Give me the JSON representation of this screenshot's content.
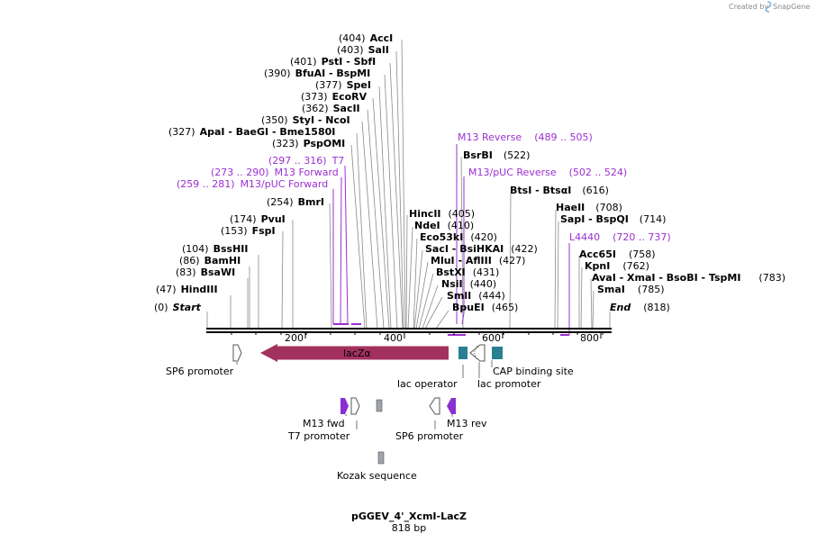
{
  "credit": "Created by",
  "brand": "SnapGene",
  "sites": [
    {
      "pos": "(404)",
      "name": "AccI",
      "extra": ""
    },
    {
      "pos": "(403)",
      "name": "SalI",
      "extra": ""
    },
    {
      "pos": "(401)",
      "name": "PstI",
      "extra": "  -  SbfI"
    },
    {
      "pos": "(390)",
      "name": "BfuAI",
      "extra": "  -  BspMI"
    },
    {
      "pos": "(377)",
      "name": "SpeI",
      "extra": ""
    },
    {
      "pos": "(373)",
      "name": "EcoRV",
      "extra": ""
    },
    {
      "pos": "(362)",
      "name": "SacII",
      "extra": ""
    },
    {
      "pos": "(350)",
      "name": "StyI",
      "extra": "  -  NcoI"
    },
    {
      "pos": "(327)",
      "name": "ApaI",
      "extra": "   -  BaeGI  -  Bme1580I"
    },
    {
      "pos": "(323)",
      "name": "PspOMI",
      "extra": ""
    },
    {
      "pos": "(254)",
      "name": "BmrI",
      "extra": ""
    },
    {
      "pos": "(174)",
      "name": "PvuI",
      "extra": ""
    },
    {
      "pos": "(153)",
      "name": "FspI",
      "extra": ""
    },
    {
      "pos": "(104)",
      "name": "BssHII",
      "extra": ""
    },
    {
      "pos": "(86)",
      "name": "BamHI",
      "extra": ""
    },
    {
      "pos": "(83)",
      "name": "BsaWI",
      "extra": ""
    },
    {
      "pos": "(47)",
      "name": "HindIII",
      "extra": ""
    },
    {
      "pos": "(0)",
      "name": "Start",
      "extra": ""
    },
    {
      "pos": "(405)",
      "name": "HincII",
      "extra": ""
    },
    {
      "pos": "(410)",
      "name": "NdeI",
      "extra": ""
    },
    {
      "pos": "(420)",
      "name": "Eco53kI",
      "extra": ""
    },
    {
      "pos": "(422)",
      "name": "SacI",
      "extra": "  -  BsiHKAI"
    },
    {
      "pos": "(427)",
      "name": "MluI",
      "extra": "  -  AflIII"
    },
    {
      "pos": "(431)",
      "name": "BstXI",
      "extra": ""
    },
    {
      "pos": "(440)",
      "name": "NsiI",
      "extra": ""
    },
    {
      "pos": "(444)",
      "name": "SmlI",
      "extra": ""
    },
    {
      "pos": "(465)",
      "name": "BpuEI",
      "extra": ""
    },
    {
      "pos": "(522)",
      "name": "BsrBI",
      "extra": ""
    },
    {
      "pos": "(616)",
      "name": "BtsI",
      "extra": "  -  BtsαI"
    },
    {
      "pos": "(708)",
      "name": "HaeII",
      "extra": ""
    },
    {
      "pos": "(714)",
      "name": "SapI",
      "extra": "  -  BspQI"
    },
    {
      "pos": "(758)",
      "name": "Acc65I",
      "extra": ""
    },
    {
      "pos": "(762)",
      "name": "KpnI",
      "extra": ""
    },
    {
      "pos": "(783)",
      "name": "AvaI",
      "extra": "  -  XmaI  -  BsoBI  -  TspMI"
    },
    {
      "pos": "(785)",
      "name": "SmaI",
      "extra": ""
    },
    {
      "pos": "(818)",
      "name": "End",
      "extra": ""
    }
  ],
  "primers": [
    {
      "name": "M13 Reverse",
      "range": "(489 .. 505)"
    },
    {
      "name": "M13/pUC Reverse",
      "range": "(502 .. 524)"
    },
    {
      "name": "T7",
      "range": "(297 .. 316)"
    },
    {
      "name": "M13 Forward",
      "range": "(273 .. 290)"
    },
    {
      "name": "M13/pUC Forward",
      "range": "(259 .. 281)"
    },
    {
      "name": "L4440",
      "range": "(720 .. 737)"
    }
  ],
  "ruler": [
    "200",
    "400",
    "600",
    "800"
  ],
  "features": {
    "lacz": "lacZα",
    "sp6_left": "SP6 promoter",
    "lac_operator": "lac operator",
    "cap": "CAP binding site",
    "lac_promoter": "lac promoter",
    "m13fwd": "M13 fwd",
    "t7": "T7 promoter",
    "sp6_right": "SP6 promoter",
    "m13rev": "M13 rev",
    "kozak": "Kozak sequence"
  },
  "colors": {
    "lacz": "#a3315e",
    "primer": "#9b2fd0",
    "teal": "#2a7f91",
    "grey": "#9fa3ad",
    "purple_feature": "#8a2fd2"
  },
  "title": "pGGEV_4'_XcmI-LacZ",
  "length": "818 bp"
}
